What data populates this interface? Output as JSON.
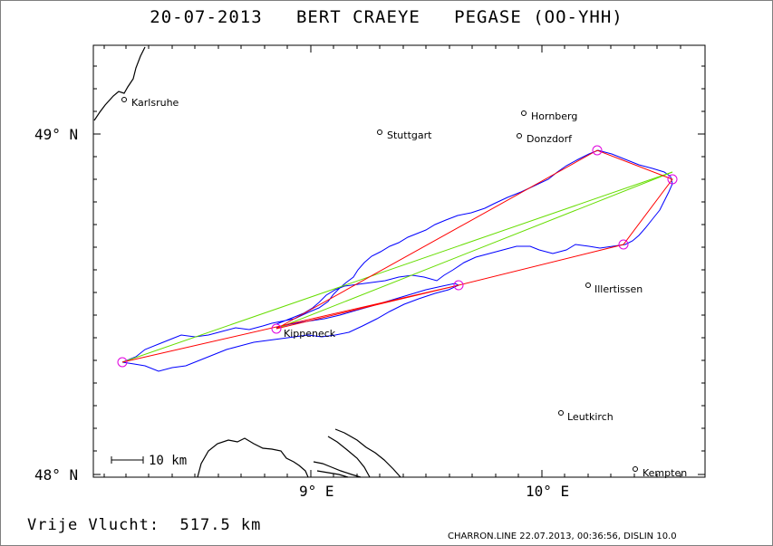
{
  "title": "20-07-2013   BERT CRAEYE   PEGASE (OO-YHH)",
  "distance_text": "Vrije Vlucht:  517.5 km",
  "footer_text": "CHARRON.LINE 22.07.2013, 00:36:56, DISLIN 10.0",
  "map": {
    "lat_labels": [
      "49° N",
      "48° N"
    ],
    "lon_labels": [
      "9° E",
      "10° E"
    ],
    "scale_label": "10 km",
    "colors": {
      "track": "#0000ff",
      "free_flight": "#ff0000",
      "alternate": "#66dd00",
      "turnpoint": "#e000e0",
      "terrain": "#000000"
    },
    "cities": [
      {
        "name": "Karlsruhe"
      },
      {
        "name": "Stuttgart"
      },
      {
        "name": "Hornberg"
      },
      {
        "name": "Donzdorf"
      },
      {
        "name": "Illertissen"
      },
      {
        "name": "Kippeneck"
      },
      {
        "name": "Leutkirch"
      },
      {
        "name": "Kempten"
      }
    ]
  }
}
